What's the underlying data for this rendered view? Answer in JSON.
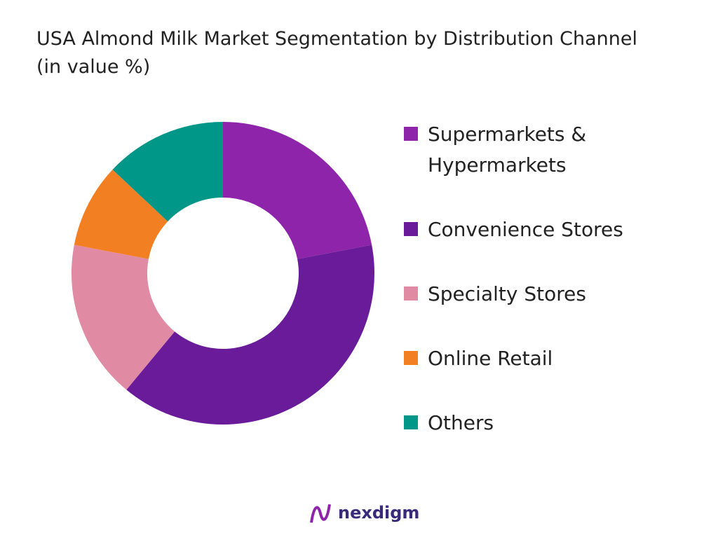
{
  "chart_data": {
    "type": "donut",
    "title": "USA Almond Milk Market Segmentation by Distribution Channel (in value %)",
    "categories": [
      "Supermarkets & Hypermarkets",
      "Convenience Stores",
      "Specialty Stores",
      "Online Retail",
      "Others"
    ],
    "values": [
      22,
      39,
      17,
      9,
      13
    ],
    "colors": [
      "#8e24aa",
      "#6a1b9a",
      "#e08aa3",
      "#f28023",
      "#009688"
    ],
    "legend": "right"
  },
  "logo": "nexdigm"
}
